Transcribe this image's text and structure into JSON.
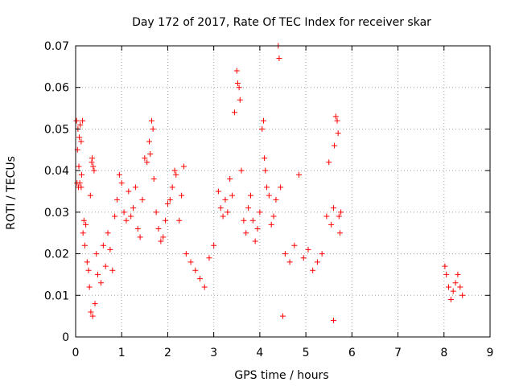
{
  "chart_data": {
    "type": "scatter",
    "title": "Day 172 of 2017, Rate Of TEC Index for receiver skar",
    "xlabel": "GPS time / hours",
    "ylabel": "ROTI / TECUs",
    "xlim": [
      0,
      9
    ],
    "ylim": [
      0,
      0.07
    ],
    "xticks": [
      "0",
      "1",
      "2",
      "3",
      "4",
      "5",
      "6",
      "7",
      "8",
      "9"
    ],
    "yticks": [
      "0",
      "0.01",
      "0.02",
      "0.03",
      "0.04",
      "0.05",
      "0.06",
      "0.07"
    ],
    "grid": true,
    "marker": "+",
    "color": "#ff0000",
    "series": [
      {
        "points": [
          [
            0.02,
            0.052
          ],
          [
            0.05,
            0.05
          ],
          [
            0.08,
            0.048
          ],
          [
            0.1,
            0.051
          ],
          [
            0.12,
            0.047
          ],
          [
            0.15,
            0.052
          ],
          [
            0.03,
            0.037
          ],
          [
            0.06,
            0.036
          ],
          [
            0.09,
            0.037
          ],
          [
            0.12,
            0.036
          ],
          [
            0.04,
            0.045
          ],
          [
            0.07,
            0.041
          ],
          [
            0.13,
            0.039
          ],
          [
            0.16,
            0.025
          ],
          [
            0.18,
            0.028
          ],
          [
            0.2,
            0.022
          ],
          [
            0.22,
            0.027
          ],
          [
            0.25,
            0.018
          ],
          [
            0.28,
            0.016
          ],
          [
            0.3,
            0.012
          ],
          [
            0.32,
            0.034
          ],
          [
            0.35,
            0.042
          ],
          [
            0.38,
            0.041
          ],
          [
            0.4,
            0.04
          ],
          [
            0.36,
            0.043
          ],
          [
            0.33,
            0.006
          ],
          [
            0.37,
            0.005
          ],
          [
            0.42,
            0.008
          ],
          [
            0.45,
            0.02
          ],
          [
            0.48,
            0.015
          ],
          [
            0.55,
            0.013
          ],
          [
            0.6,
            0.022
          ],
          [
            0.65,
            0.017
          ],
          [
            0.7,
            0.025
          ],
          [
            0.75,
            0.021
          ],
          [
            0.8,
            0.016
          ],
          [
            0.85,
            0.029
          ],
          [
            0.9,
            0.033
          ],
          [
            0.95,
            0.039
          ],
          [
            1.0,
            0.037
          ],
          [
            1.05,
            0.03
          ],
          [
            1.1,
            0.028
          ],
          [
            1.15,
            0.035
          ],
          [
            1.2,
            0.029
          ],
          [
            1.25,
            0.031
          ],
          [
            1.3,
            0.036
          ],
          [
            1.35,
            0.026
          ],
          [
            1.4,
            0.024
          ],
          [
            1.45,
            0.033
          ],
          [
            1.5,
            0.043
          ],
          [
            1.55,
            0.042
          ],
          [
            1.6,
            0.047
          ],
          [
            1.62,
            0.044
          ],
          [
            1.65,
            0.052
          ],
          [
            1.68,
            0.05
          ],
          [
            1.7,
            0.038
          ],
          [
            1.75,
            0.03
          ],
          [
            1.8,
            0.026
          ],
          [
            1.85,
            0.023
          ],
          [
            1.9,
            0.024
          ],
          [
            1.95,
            0.028
          ],
          [
            2.0,
            0.032
          ],
          [
            2.05,
            0.033
          ],
          [
            2.1,
            0.036
          ],
          [
            2.15,
            0.04
          ],
          [
            2.18,
            0.039
          ],
          [
            2.25,
            0.028
          ],
          [
            2.3,
            0.034
          ],
          [
            2.35,
            0.041
          ],
          [
            2.4,
            0.02
          ],
          [
            2.5,
            0.018
          ],
          [
            2.6,
            0.016
          ],
          [
            2.7,
            0.014
          ],
          [
            2.8,
            0.012
          ],
          [
            2.9,
            0.019
          ],
          [
            3.0,
            0.022
          ],
          [
            3.1,
            0.035
          ],
          [
            3.15,
            0.031
          ],
          [
            3.2,
            0.029
          ],
          [
            3.25,
            0.033
          ],
          [
            3.3,
            0.03
          ],
          [
            3.35,
            0.038
          ],
          [
            3.4,
            0.034
          ],
          [
            3.45,
            0.054
          ],
          [
            3.5,
            0.064
          ],
          [
            3.52,
            0.061
          ],
          [
            3.55,
            0.06
          ],
          [
            3.57,
            0.057
          ],
          [
            3.6,
            0.04
          ],
          [
            3.65,
            0.028
          ],
          [
            3.7,
            0.025
          ],
          [
            3.75,
            0.031
          ],
          [
            3.8,
            0.034
          ],
          [
            3.85,
            0.028
          ],
          [
            3.9,
            0.023
          ],
          [
            3.95,
            0.026
          ],
          [
            4.0,
            0.03
          ],
          [
            4.05,
            0.05
          ],
          [
            4.08,
            0.052
          ],
          [
            4.1,
            0.043
          ],
          [
            4.12,
            0.04
          ],
          [
            4.15,
            0.036
          ],
          [
            4.2,
            0.034
          ],
          [
            4.25,
            0.027
          ],
          [
            4.3,
            0.029
          ],
          [
            4.35,
            0.033
          ],
          [
            4.4,
            0.07
          ],
          [
            4.42,
            0.067
          ],
          [
            4.45,
            0.036
          ],
          [
            4.5,
            0.005
          ],
          [
            4.55,
            0.02
          ],
          [
            4.65,
            0.018
          ],
          [
            4.75,
            0.022
          ],
          [
            4.85,
            0.039
          ],
          [
            4.95,
            0.019
          ],
          [
            5.05,
            0.021
          ],
          [
            5.15,
            0.016
          ],
          [
            5.25,
            0.018
          ],
          [
            5.35,
            0.02
          ],
          [
            5.45,
            0.029
          ],
          [
            5.5,
            0.042
          ],
          [
            5.55,
            0.027
          ],
          [
            5.6,
            0.031
          ],
          [
            5.62,
            0.046
          ],
          [
            5.65,
            0.053
          ],
          [
            5.68,
            0.052
          ],
          [
            5.7,
            0.049
          ],
          [
            5.72,
            0.029
          ],
          [
            5.74,
            0.025
          ],
          [
            5.76,
            0.03
          ],
          [
            5.6,
            0.004
          ],
          [
            8.02,
            0.017
          ],
          [
            8.05,
            0.015
          ],
          [
            8.1,
            0.012
          ],
          [
            8.15,
            0.009
          ],
          [
            8.2,
            0.011
          ],
          [
            8.25,
            0.013
          ],
          [
            8.3,
            0.015
          ],
          [
            8.35,
            0.012
          ],
          [
            8.4,
            0.01
          ]
        ]
      }
    ]
  }
}
